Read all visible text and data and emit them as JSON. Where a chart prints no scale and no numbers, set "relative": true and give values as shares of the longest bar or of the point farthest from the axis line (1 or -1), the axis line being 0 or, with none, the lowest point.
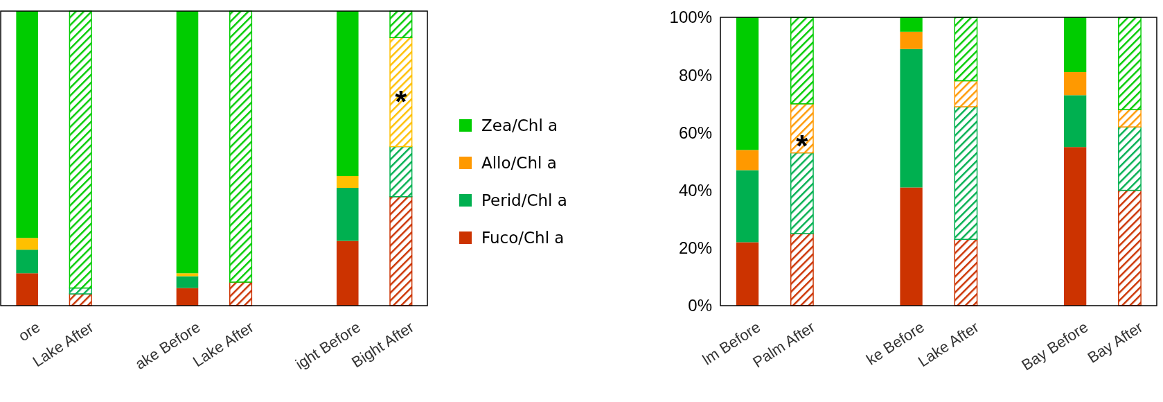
{
  "chart_data": [
    {
      "type": "bar",
      "stacked": true,
      "relative": true,
      "legend": false,
      "categories": [
        "ore",
        "Lake After",
        null,
        "ake Before",
        "Lake After",
        null,
        "ight Before",
        "Bight After"
      ],
      "series": [
        {
          "color": "#cc3300",
          "values": [
            0.11,
            0.04,
            null,
            0.06,
            0.08,
            null,
            0.22,
            0.37
          ]
        },
        {
          "color": "#00b050",
          "values": [
            0.08,
            0.02,
            null,
            0.04,
            0,
            null,
            0.18,
            0.17
          ]
        },
        {
          "color": "#ffc000",
          "values": [
            0.04,
            0,
            null,
            0.01,
            0,
            null,
            0.04,
            0.37
          ]
        },
        {
          "color": "#00cc00",
          "values": [
            0.77,
            0.94,
            null,
            0.89,
            0.92,
            null,
            0.56,
            0.09
          ]
        }
      ],
      "annotations": [
        {
          "text": "*",
          "x": "Bight After",
          "y": 0.73
        }
      ]
    },
    {
      "type": "bar",
      "stacked": true,
      "legend": "left",
      "categories": [
        "lm Before",
        "Palm After",
        null,
        "ke Before",
        "Lake After",
        null,
        "Bay Before",
        "Bay After"
      ],
      "ylim": [
        0,
        100
      ],
      "yticks": [
        {
          "value": 0,
          "label": "0%"
        },
        {
          "value": 20,
          "label": "20%"
        },
        {
          "value": 40,
          "label": "40%"
        },
        {
          "value": 60,
          "label": "60%"
        },
        {
          "value": 80,
          "label": "80%"
        },
        {
          "value": 100,
          "label": "100%"
        }
      ],
      "series": [
        {
          "name": "Fuco/Chl a",
          "color": "#cc3300",
          "values": [
            22,
            25,
            null,
            41,
            23,
            null,
            55,
            40
          ]
        },
        {
          "name": "Perid/Chl a",
          "color": "#00b050",
          "values": [
            25,
            28,
            null,
            48,
            46,
            null,
            18,
            22
          ]
        },
        {
          "name": "Allo/Chl a",
          "color": "#ff9900",
          "values": [
            7,
            17,
            null,
            6,
            9,
            null,
            8,
            6
          ]
        },
        {
          "name": "Zea/Chl a",
          "color": "#00cc00",
          "values": [
            46,
            30,
            null,
            5,
            22,
            null,
            19,
            32
          ]
        }
      ],
      "annotations": [
        {
          "text": "*",
          "x": "Palm After",
          "y": 59
        }
      ]
    }
  ]
}
